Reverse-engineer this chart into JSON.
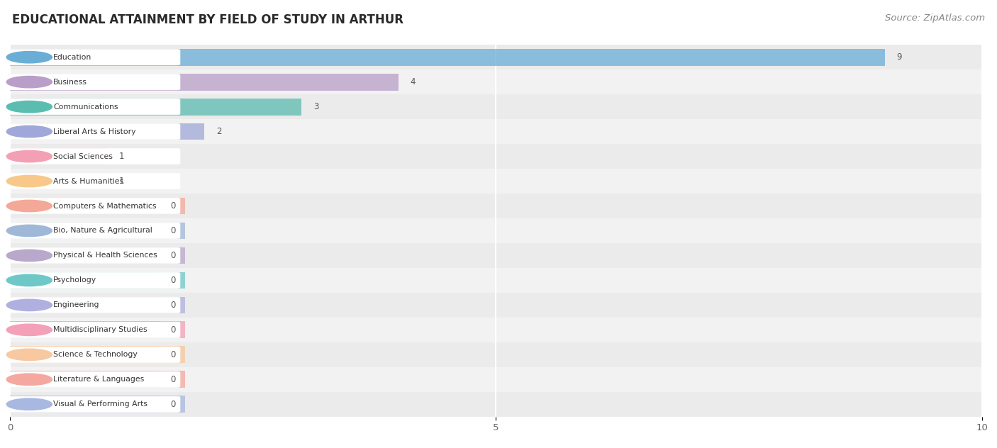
{
  "title": "EDUCATIONAL ATTAINMENT BY FIELD OF STUDY IN ARTHUR",
  "source": "Source: ZipAtlas.com",
  "categories": [
    "Education",
    "Business",
    "Communications",
    "Liberal Arts & History",
    "Social Sciences",
    "Arts & Humanities",
    "Computers & Mathematics",
    "Bio, Nature & Agricultural",
    "Physical & Health Sciences",
    "Psychology",
    "Engineering",
    "Multidisciplinary Studies",
    "Science & Technology",
    "Literature & Languages",
    "Visual & Performing Arts"
  ],
  "values": [
    9,
    4,
    3,
    2,
    1,
    1,
    0,
    0,
    0,
    0,
    0,
    0,
    0,
    0,
    0
  ],
  "bar_colors": [
    "#6aaed6",
    "#b89ec8",
    "#5bbcb0",
    "#9fa8d8",
    "#f4a0b4",
    "#f8c88a",
    "#f4a898",
    "#a0b8d8",
    "#b8a8cc",
    "#6ec8c8",
    "#b0b0e0",
    "#f4a0b8",
    "#f8c8a0",
    "#f4a8a0",
    "#a8b8e0"
  ],
  "xlim": [
    0,
    10
  ],
  "xticks": [
    0,
    5,
    10
  ],
  "label_stub": 1.8,
  "title_fontsize": 12,
  "source_fontsize": 9.5,
  "bar_height": 0.68,
  "row_bg_color": "#ebebeb",
  "alt_row_bg_color": "#f2f2f2"
}
